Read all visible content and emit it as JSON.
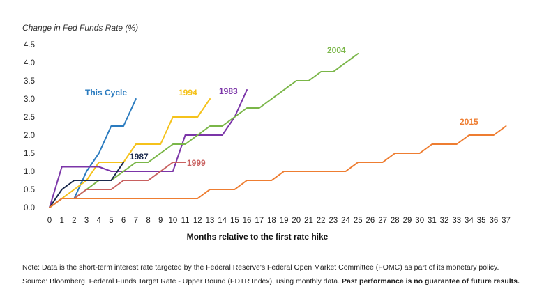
{
  "chart_data": {
    "type": "line",
    "ylabel": "Change in Fed Funds Rate (%)",
    "xlabel": "Months relative to the first rate hike",
    "xlim": [
      0,
      37
    ],
    "ylim": [
      0,
      4.5
    ],
    "x_ticks": [
      0,
      1,
      2,
      3,
      4,
      5,
      6,
      7,
      8,
      9,
      10,
      11,
      12,
      13,
      14,
      15,
      16,
      17,
      18,
      19,
      20,
      21,
      22,
      23,
      24,
      25,
      26,
      27,
      28,
      29,
      30,
      31,
      32,
      33,
      34,
      35,
      36,
      37
    ],
    "y_ticks": [
      "0.0",
      "0.5",
      "1.0",
      "1.5",
      "2.0",
      "2.5",
      "3.0",
      "3.5",
      "4.0",
      "4.5"
    ],
    "grid": false,
    "legend": "inline labels",
    "series": [
      {
        "name": "This Cycle",
        "color": "#2a7bbf",
        "x": [
          0,
          1,
          2,
          3,
          4,
          5,
          6,
          7
        ],
        "y": [
          0,
          0.25,
          0.25,
          1.0,
          1.5,
          2.25,
          2.25,
          3.0
        ]
      },
      {
        "name": "1994",
        "color": "#f5c21b",
        "x": [
          0,
          1,
          2,
          3,
          4,
          5,
          6,
          7,
          8,
          9,
          10,
          11,
          12,
          13
        ],
        "y": [
          0,
          0.25,
          0.5,
          0.75,
          1.25,
          1.25,
          1.25,
          1.75,
          1.75,
          1.75,
          2.5,
          2.5,
          2.5,
          3.0
        ]
      },
      {
        "name": "1983",
        "color": "#7b35a8",
        "x": [
          0,
          1,
          2,
          3,
          4,
          5,
          6,
          7,
          8,
          9,
          10,
          11,
          12,
          13,
          14,
          15,
          16
        ],
        "y": [
          0,
          1.125,
          1.125,
          1.125,
          1.125,
          1.0,
          1.0,
          1.0,
          1.0,
          1.0,
          1.0,
          2.0,
          2.0,
          2.0,
          2.0,
          2.5,
          3.25
        ]
      },
      {
        "name": "2004",
        "color": "#7ab648",
        "x": [
          0,
          1,
          2,
          3,
          4,
          5,
          6,
          7,
          8,
          9,
          10,
          11,
          12,
          13,
          14,
          15,
          16,
          17,
          18,
          19,
          20,
          21,
          22,
          23,
          24,
          25
        ],
        "y": [
          0,
          0.25,
          0.25,
          0.5,
          0.75,
          0.75,
          1.0,
          1.25,
          1.25,
          1.5,
          1.75,
          1.75,
          2.0,
          2.25,
          2.25,
          2.5,
          2.75,
          2.75,
          3.0,
          3.25,
          3.5,
          3.5,
          3.75,
          3.75,
          4.0,
          4.25
        ]
      },
      {
        "name": "1987",
        "color": "#1b2a4e",
        "x": [
          0,
          1,
          2,
          3,
          4,
          5,
          6
        ],
        "y": [
          0,
          0.5,
          0.75,
          0.75,
          0.75,
          0.75,
          1.25
        ]
      },
      {
        "name": "1999",
        "color": "#c8605f",
        "x": [
          0,
          1,
          2,
          3,
          4,
          5,
          6,
          7,
          8,
          9,
          10,
          11
        ],
        "y": [
          0,
          0.25,
          0.25,
          0.5,
          0.5,
          0.5,
          0.75,
          0.75,
          0.75,
          1.0,
          1.25,
          1.25
        ]
      },
      {
        "name": "2015",
        "color": "#ee7d31",
        "x": [
          0,
          1,
          2,
          3,
          4,
          5,
          6,
          7,
          8,
          9,
          10,
          11,
          12,
          13,
          14,
          15,
          16,
          17,
          18,
          19,
          20,
          21,
          22,
          23,
          24,
          25,
          26,
          27,
          28,
          29,
          30,
          31,
          32,
          33,
          34,
          35,
          36,
          37
        ],
        "y": [
          0,
          0.25,
          0.25,
          0.25,
          0.25,
          0.25,
          0.25,
          0.25,
          0.25,
          0.25,
          0.25,
          0.25,
          0.25,
          0.5,
          0.5,
          0.5,
          0.75,
          0.75,
          0.75,
          1.0,
          1.0,
          1.0,
          1.0,
          1.0,
          1.0,
          1.25,
          1.25,
          1.25,
          1.5,
          1.5,
          1.5,
          1.75,
          1.75,
          1.75,
          2.0,
          2.0,
          2.0,
          2.25
        ]
      }
    ]
  },
  "notes": {
    "note": "Note: Data is the short-term interest rate targeted by the Federal Reserve's Federal Open Market Committee (FOMC) as part of its monetary policy.",
    "source": "Source: Bloomberg. Federal Funds Target Rate - Upper Bound (FDTR Index), using monthly data. ",
    "disclaimer": "Past performance is no guarantee of future results."
  }
}
